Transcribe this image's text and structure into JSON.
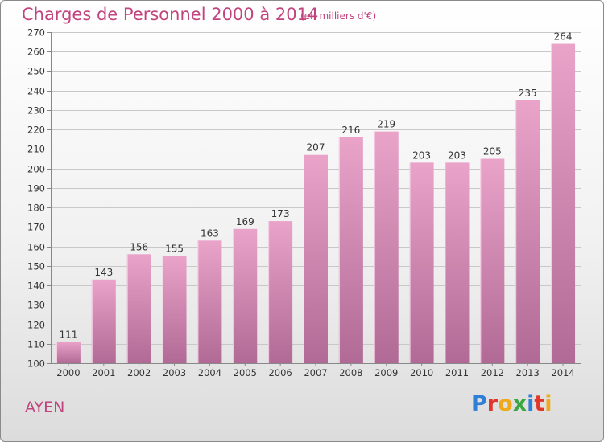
{
  "header": {
    "title": "Charges de Personnel 2000 à 2014",
    "subtitle": "(en milliers d'€)"
  },
  "footer": {
    "town": "AYEN",
    "logo_letters": [
      "P",
      "r",
      "o",
      "x",
      "i",
      "t",
      "i"
    ],
    "logo_colors": [
      "#2f7fd6",
      "#e2362b",
      "#f0a91b",
      "#3aa640",
      "#2f7fd6",
      "#e2362b",
      "#f0a91b"
    ]
  },
  "colors": {
    "bar_top": "#eaa3c9",
    "bar_bottom": "#b06a95",
    "grid": "#c8c8c8",
    "text": "#333333",
    "accent": "#c2447e"
  },
  "chart_data": {
    "type": "bar",
    "categories": [
      "2000",
      "2001",
      "2002",
      "2003",
      "2004",
      "2005",
      "2006",
      "2007",
      "2008",
      "2009",
      "2010",
      "2011",
      "2012",
      "2013",
      "2014"
    ],
    "values": [
      111,
      143,
      156,
      155,
      163,
      169,
      173,
      207,
      216,
      219,
      203,
      203,
      205,
      235,
      264
    ],
    "ylim": [
      100,
      270
    ],
    "yticks": [
      100,
      110,
      120,
      130,
      140,
      150,
      160,
      170,
      180,
      190,
      200,
      210,
      220,
      230,
      240,
      250,
      260,
      270
    ],
    "grid": true,
    "data_labels": true
  }
}
